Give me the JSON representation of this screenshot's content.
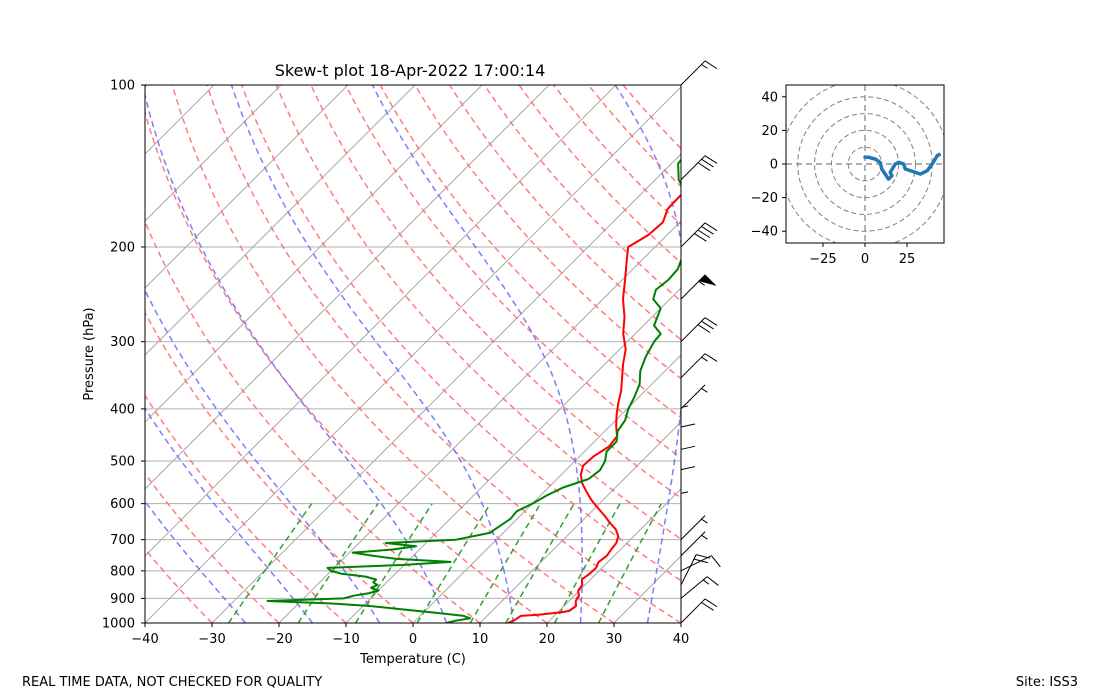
{
  "title": "Skew-t plot 18-Apr-2022 17:00:14",
  "footer_left": "REAL TIME DATA, NOT CHECKED FOR QUALITY",
  "footer_right": "Site: ISS3",
  "chart_data": [
    {
      "type": "line",
      "subtype": "skew-t log-p",
      "title": "Skew-t plot 18-Apr-2022 17:00:14",
      "xlabel": "Temperature (C)",
      "ylabel": "Pressure (hPa)",
      "xlim": [
        -40,
        40
      ],
      "ylim": [
        1000,
        100
      ],
      "y_scale": "log",
      "x_ticks": [
        -40,
        -30,
        -20,
        -10,
        0,
        10,
        20,
        30,
        40
      ],
      "y_ticks": [
        1000,
        900,
        800,
        700,
        600,
        500,
        400,
        300,
        200,
        100
      ],
      "grid": true,
      "colors": {
        "temperature": "#ff0000",
        "dewpoint": "#008000",
        "dry_adiabats": "#ff6666",
        "moist_adiabats": "#6666ff",
        "mixing_ratio": "#33a033",
        "isotherms": "#aaaaaa"
      },
      "series": [
        {
          "key": "temperature",
          "pressure": [
            1000,
            985,
            970,
            965,
            960,
            955,
            950,
            930,
            910,
            890,
            870,
            850,
            830,
            810,
            790,
            770,
            750,
            730,
            710,
            690,
            670,
            650,
            630,
            610,
            590,
            570,
            550,
            530,
            510,
            490,
            470,
            450,
            430,
            410,
            390,
            370,
            350,
            330,
            310,
            290,
            270,
            250,
            230,
            210,
            200,
            190,
            180,
            170,
            160,
            150,
            140,
            130,
            120,
            110,
            105,
            100
          ],
          "values": [
            14.2,
            14.8,
            15.0,
            17.5,
            19.0,
            20.5,
            21.5,
            21.8,
            21.0,
            20.7,
            19.8,
            19.6,
            18.7,
            19.0,
            19.1,
            18.6,
            18.9,
            18.6,
            18.4,
            17.7,
            16.3,
            14.3,
            12.4,
            10.3,
            8.2,
            6.3,
            4.4,
            2.9,
            1.9,
            2.1,
            2.9,
            2.6,
            0.9,
            -0.7,
            -2.2,
            -3.6,
            -5.4,
            -7.3,
            -9.1,
            -11.8,
            -14.1,
            -17.0,
            -19.6,
            -22.5,
            -24.0,
            -22.8,
            -22.5,
            -23.8,
            -23.9,
            -22.0,
            -20.5,
            -19.1,
            -19.0,
            -17.8,
            -15.2,
            -15.0
          ]
        },
        {
          "key": "dewpoint",
          "pressure": [
            1000,
            990,
            980,
            970,
            960,
            950,
            940,
            930,
            920,
            910,
            900,
            890,
            880,
            870,
            860,
            850,
            840,
            830,
            820,
            810,
            800,
            790,
            780,
            770,
            760,
            750,
            740,
            730,
            720,
            710,
            700,
            680,
            660,
            640,
            620,
            600,
            580,
            560,
            540,
            520,
            500,
            480,
            460,
            440,
            420,
            400,
            380,
            360,
            340,
            320,
            300,
            290,
            280,
            270,
            260,
            250,
            240,
            230,
            220,
            210,
            200,
            195,
            190,
            180,
            170,
            160,
            150,
            140,
            130,
            120,
            110,
            105,
            100
          ],
          "values": [
            5.0,
            6.0,
            7.8,
            6.5,
            3.0,
            -1.0,
            -5.0,
            -9.0,
            -15.0,
            -25.0,
            -14.0,
            -13.0,
            -11.0,
            -10.0,
            -11.5,
            -11.0,
            -12.0,
            -12.0,
            -14.0,
            -18.0,
            -20.0,
            -21.0,
            -10.0,
            -3.5,
            -12.0,
            -16.0,
            -19.5,
            -14.0,
            -11.0,
            -16.0,
            -6.0,
            -2.0,
            -1.5,
            -1.0,
            -1.2,
            0.0,
            0.9,
            2.2,
            4.7,
            5.1,
            4.5,
            3.3,
            3.3,
            1.9,
            1.4,
            0.2,
            -0.7,
            -1.8,
            -3.7,
            -5.0,
            -6.0,
            -6.2,
            -8.4,
            -9.2,
            -10.0,
            -12.5,
            -13.5,
            -13.1,
            -13.3,
            -14.3,
            -16.0,
            -13.0,
            -17.0,
            -17.8,
            -19.1,
            -23.0,
            -26.5,
            -29.0,
            -29.5,
            -29.8,
            -30.9,
            -30.1,
            -30.8
          ]
        }
      ],
      "wind_barbs": {
        "pressure": [
          1000,
          900,
          850,
          800,
          750,
          700,
          650,
          600,
          550,
          500,
          450,
          400,
          350,
          300,
          250,
          200,
          150,
          100
        ],
        "u_kt": [
          15,
          12,
          10,
          10,
          5,
          5,
          0,
          0,
          0,
          0,
          0,
          5,
          10,
          20,
          40,
          30,
          20,
          10
        ],
        "v_kt": [
          15,
          10,
          20,
          5,
          5,
          5,
          5,
          10,
          10,
          10,
          5,
          5,
          10,
          20,
          40,
          30,
          20,
          10
        ]
      },
      "hodograph": {
        "xlim": [
          -47,
          47
        ],
        "ylim": [
          -47,
          47
        ],
        "x_ticks": [
          -25,
          0,
          25
        ],
        "y_ticks": [
          40,
          20,
          0,
          -20,
          -40
        ],
        "rings": [
          10,
          20,
          30,
          40,
          50
        ],
        "color": "#1f77b4",
        "u": [
          3,
          0,
          2,
          6,
          9,
          10,
          12,
          14,
          16,
          15,
          18,
          20,
          23,
          24,
          33,
          37,
          40,
          43,
          45
        ],
        "v": [
          4,
          4,
          4,
          3,
          1,
          -3,
          -6,
          -9,
          -7,
          -5,
          0,
          1,
          0,
          -3,
          -6,
          -4,
          0,
          5,
          6
        ]
      }
    }
  ]
}
